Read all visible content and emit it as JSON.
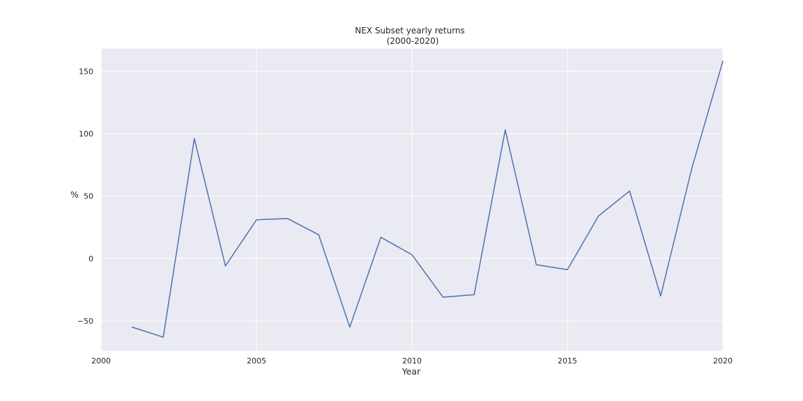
{
  "chart_data": {
    "type": "line",
    "title": "NEX Subset yearly returns",
    "subtitle": "(2000-2020)",
    "xlabel": "Year",
    "ylabel": "%",
    "xlim": [
      2000,
      2020
    ],
    "ylim": [
      -74,
      168
    ],
    "x_ticks": [
      2000,
      2005,
      2010,
      2015,
      2020
    ],
    "y_ticks": [
      -50,
      0,
      50,
      100,
      150
    ],
    "grid": true,
    "background": "#eaeaf2",
    "grid_color": "#ffffff",
    "line_color": "#4c72b0",
    "series": [
      {
        "x": [
          2001,
          2002,
          2003,
          2004,
          2005,
          2006,
          2007,
          2008,
          2009,
          2010,
          2011,
          2012,
          2013,
          2014,
          2015,
          2016,
          2017,
          2018,
          2019,
          2020
        ],
        "values": [
          -55,
          -63,
          96,
          -6,
          31,
          32,
          19,
          -55,
          17,
          3,
          -31,
          -29,
          103,
          -5,
          -9,
          34,
          54,
          -30,
          72,
          158
        ]
      }
    ]
  }
}
